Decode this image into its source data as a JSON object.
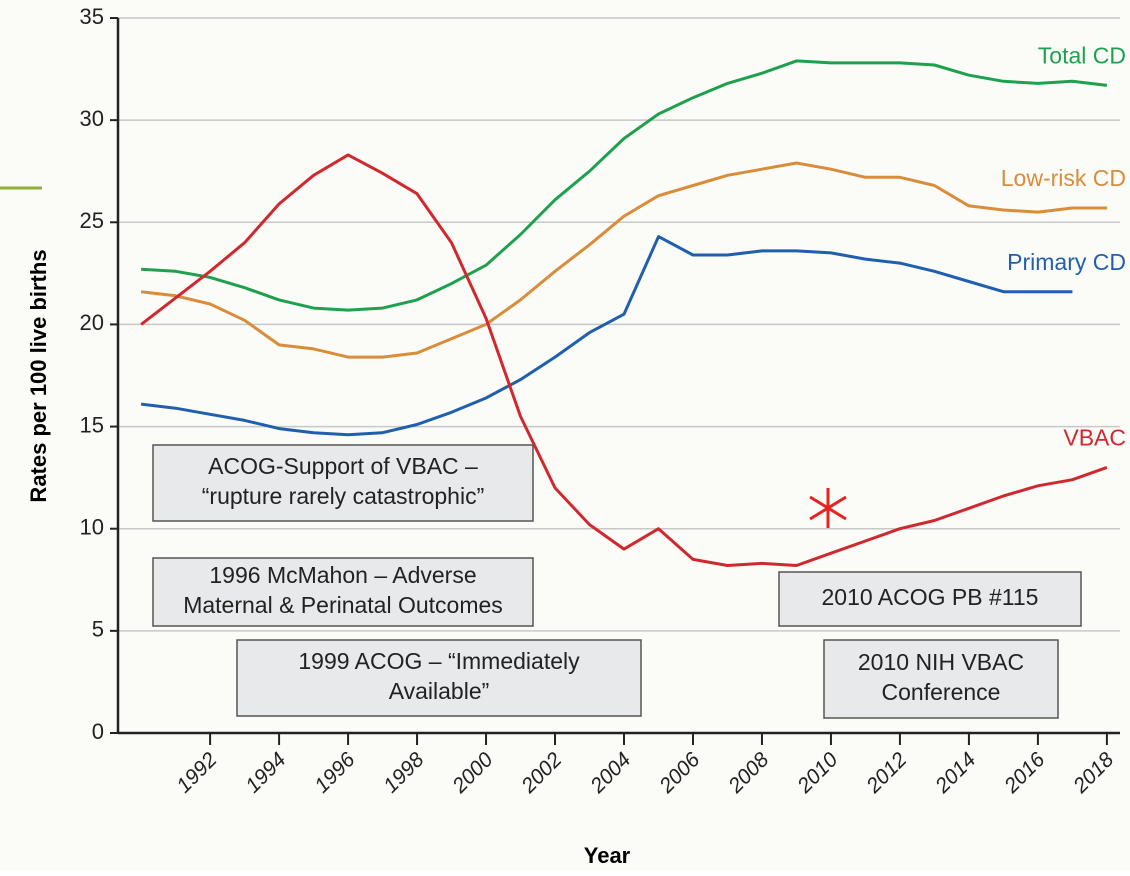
{
  "chart_data": {
    "type": "line",
    "xlabel": "Year",
    "ylabel": "Rates per 100 live births",
    "x": [
      1990,
      1991,
      1992,
      1993,
      1994,
      1995,
      1996,
      1997,
      1998,
      1999,
      2000,
      2001,
      2002,
      2003,
      2004,
      2005,
      2006,
      2007,
      2008,
      2009,
      2010,
      2011,
      2012,
      2013,
      2014,
      2015,
      2016,
      2017,
      2018
    ],
    "series": [
      {
        "name": "Total CD",
        "color": "#1fa04e",
        "values": [
          22.7,
          22.6,
          22.3,
          21.8,
          21.2,
          20.8,
          20.7,
          20.8,
          21.2,
          22.0,
          22.9,
          24.4,
          26.1,
          27.5,
          29.1,
          30.3,
          31.1,
          31.8,
          32.3,
          32.9,
          32.8,
          32.8,
          32.8,
          32.7,
          32.2,
          31.9,
          31.8,
          31.9,
          31.7
        ]
      },
      {
        "name": "Low-risk CD",
        "color": "#d98c3a",
        "values": [
          21.6,
          21.4,
          21.0,
          20.2,
          19.0,
          18.8,
          18.4,
          18.4,
          18.6,
          19.3,
          20.0,
          21.2,
          22.6,
          23.9,
          25.3,
          26.3,
          26.8,
          27.3,
          27.6,
          27.9,
          27.6,
          27.2,
          27.2,
          26.8,
          25.8,
          25.6,
          25.5,
          25.7,
          25.7
        ]
      },
      {
        "name": "Primary CD",
        "color": "#1f5fae",
        "values": [
          16.1,
          15.9,
          15.6,
          15.3,
          14.9,
          14.7,
          14.6,
          14.7,
          15.1,
          15.7,
          16.4,
          17.3,
          18.4,
          19.6,
          20.5,
          24.3,
          23.4,
          23.4,
          23.6,
          23.6,
          23.5,
          23.2,
          23.0,
          22.6,
          22.1,
          21.6,
          21.6,
          21.6,
          null
        ]
      },
      {
        "name": "VBAC",
        "color": "#d0282e",
        "values": [
          20.0,
          21.3,
          22.6,
          24.0,
          25.9,
          27.3,
          28.3,
          27.4,
          26.4,
          24.0,
          20.3,
          15.5,
          12.0,
          10.2,
          9.0,
          10.0,
          8.5,
          8.2,
          8.3,
          8.2,
          8.8,
          9.4,
          10.0,
          10.4,
          11.0,
          11.6,
          12.1,
          12.4,
          13.0
        ]
      }
    ],
    "xlim": [
      1989.33,
      2018.38
    ],
    "xticks": [
      1992,
      1994,
      1996,
      1998,
      2000,
      2002,
      2004,
      2006,
      2008,
      2010,
      2012,
      2014,
      2016,
      2018
    ],
    "ylim": [
      0,
      35
    ],
    "yticks": [
      0,
      5,
      10,
      15,
      20,
      25,
      30,
      35
    ],
    "grid": true,
    "annotations": [
      {
        "lines": [
          "ACOG-Support of VBAC –",
          "“rupture rarely catastrophic”"
        ]
      },
      {
        "lines": [
          "1996 McMahon – Adverse",
          "Maternal & Perinatal Outcomes"
        ]
      },
      {
        "lines": [
          "1999 ACOG – “Immediately",
          "Available”"
        ]
      },
      {
        "lines": [
          "2010 ACOG PB #115"
        ]
      },
      {
        "lines": [
          "2010 NIH VBAC",
          "Conference"
        ]
      }
    ]
  }
}
